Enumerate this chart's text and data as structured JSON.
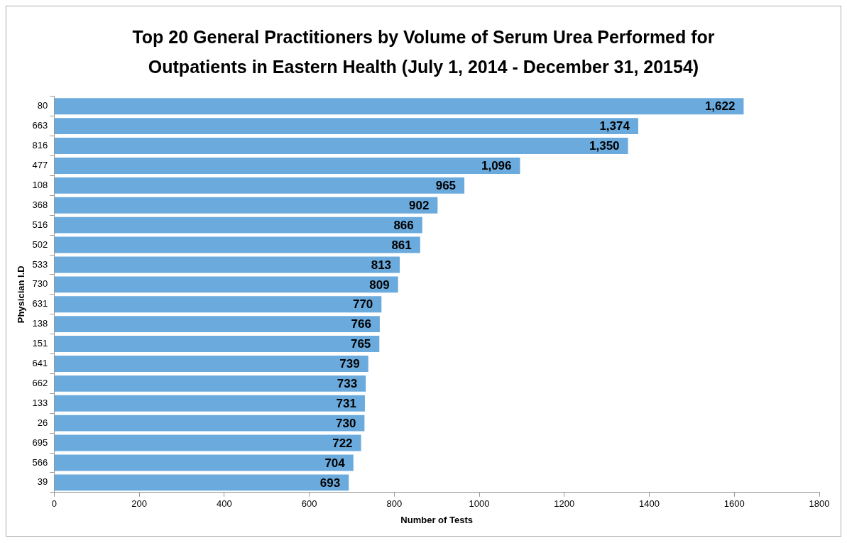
{
  "chart_data": {
    "type": "bar",
    "orientation": "horizontal",
    "title": "Top 20 General Practitioners by Volume of Serum Urea Performed for Outpatients in Eastern Health (July 1, 2014 - December 31, 20154)",
    "xlabel": "Number of Tests",
    "ylabel": "Physician I.D",
    "categories": [
      "80",
      "663",
      "816",
      "477",
      "108",
      "368",
      "516",
      "502",
      "533",
      "730",
      "631",
      "138",
      "151",
      "641",
      "662",
      "133",
      "26",
      "695",
      "566",
      "39"
    ],
    "values": [
      1622,
      1374,
      1350,
      1096,
      965,
      902,
      866,
      861,
      813,
      809,
      770,
      766,
      765,
      739,
      733,
      731,
      730,
      722,
      704,
      693
    ],
    "value_labels": [
      "1,622",
      "1,374",
      "1,350",
      "1,096",
      "965",
      "902",
      "866",
      "861",
      "813",
      "809",
      "770",
      "766",
      "765",
      "739",
      "733",
      "731",
      "730",
      "722",
      "704",
      "693"
    ],
    "color": "#6aaadd",
    "xlim": [
      0,
      1800
    ],
    "xticks": [
      0,
      200,
      400,
      600,
      800,
      1000,
      1200,
      1400,
      1600,
      1800
    ],
    "grid": false,
    "legend": false
  }
}
